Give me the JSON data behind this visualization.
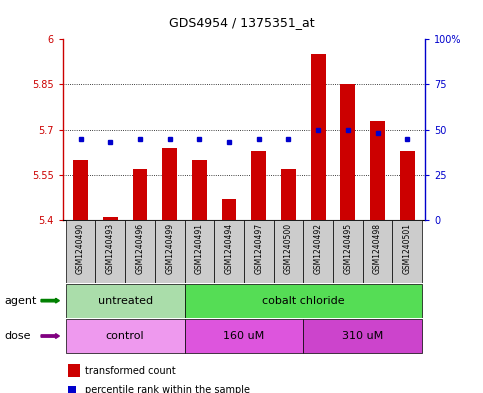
{
  "title": "GDS4954 / 1375351_at",
  "samples": [
    "GSM1240490",
    "GSM1240493",
    "GSM1240496",
    "GSM1240499",
    "GSM1240491",
    "GSM1240494",
    "GSM1240497",
    "GSM1240500",
    "GSM1240492",
    "GSM1240495",
    "GSM1240498",
    "GSM1240501"
  ],
  "transformed_counts": [
    5.6,
    5.41,
    5.57,
    5.64,
    5.6,
    5.47,
    5.63,
    5.57,
    5.95,
    5.85,
    5.73,
    5.63
  ],
  "percentile_values": [
    5.67,
    5.66,
    5.67,
    5.67,
    5.67,
    5.66,
    5.67,
    5.67,
    5.7,
    5.7,
    5.69,
    5.67
  ],
  "ymin": 5.4,
  "ymax": 6.0,
  "yticks": [
    5.4,
    5.55,
    5.7,
    5.85,
    6.0
  ],
  "ytick_labels": [
    "5.4",
    "5.55",
    "5.7",
    "5.85",
    "6"
  ],
  "right_yticks": [
    0,
    25,
    50,
    75,
    100
  ],
  "right_ytick_labels": [
    "0",
    "25",
    "50",
    "75",
    "100%"
  ],
  "bar_color": "#cc0000",
  "dot_color": "#0000cc",
  "agent_groups": [
    {
      "label": "untreated",
      "start": 0,
      "end": 4,
      "color": "#aaddaa"
    },
    {
      "label": "cobalt chloride",
      "start": 4,
      "end": 12,
      "color": "#55dd55"
    }
  ],
  "dose_groups": [
    {
      "label": "control",
      "start": 0,
      "end": 4,
      "color": "#ee99ee"
    },
    {
      "label": "160 uM",
      "start": 4,
      "end": 8,
      "color": "#dd55dd"
    },
    {
      "label": "310 uM",
      "start": 8,
      "end": 12,
      "color": "#cc44cc"
    }
  ],
  "legend_bar_label": "transformed count",
  "legend_dot_label": "percentile rank within the sample",
  "axis_left_color": "#cc0000",
  "axis_right_color": "#0000cc",
  "plot_bg_color": "#ffffff",
  "xticklabel_bg": "#cccccc"
}
